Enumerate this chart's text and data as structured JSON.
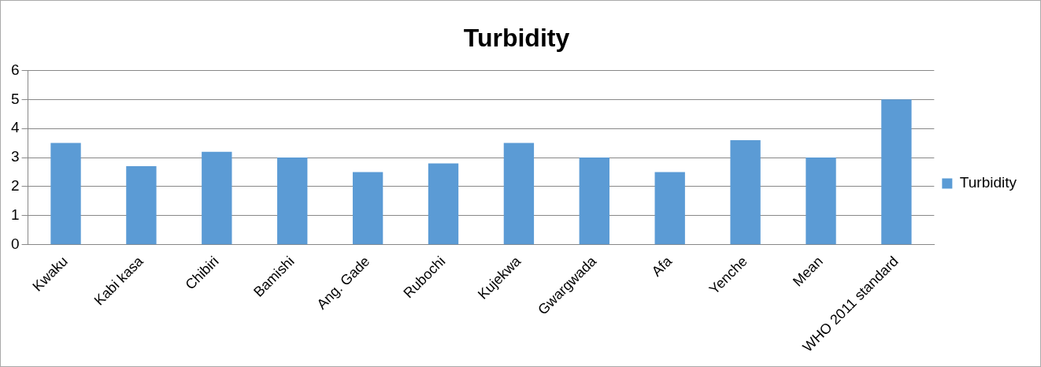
{
  "chart_data": {
    "type": "bar",
    "title": "Turbidity",
    "categories": [
      "Kwaku",
      "Kabi kasa",
      "Chibiri",
      "Bamishi",
      "Ang. Gade",
      "Rubochi",
      "Kujekwa",
      "Gwargwada",
      "Afa",
      "Yenche",
      "Mean",
      "WHO 2011 standard"
    ],
    "series": [
      {
        "name": "Turbidity",
        "color": "#5b9bd5",
        "values": [
          3.5,
          2.7,
          3.2,
          3.0,
          2.5,
          2.8,
          3.5,
          3.0,
          2.5,
          3.6,
          3.0,
          5.0
        ]
      }
    ],
    "ylim": [
      0,
      6
    ],
    "yticks": [
      0,
      1,
      2,
      3,
      4,
      5,
      6
    ],
    "grid": "y",
    "legend": "right"
  }
}
